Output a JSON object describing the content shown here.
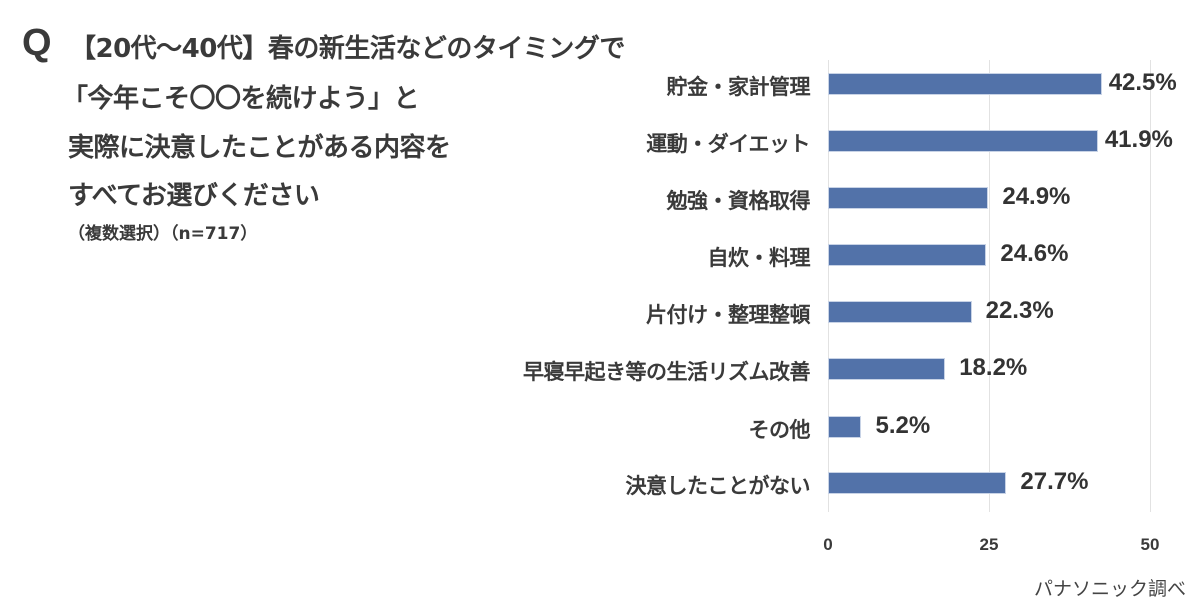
{
  "question": {
    "mark": "Q",
    "lines": [
      "【20代～40代】春の新生活などのタイミングで",
      "「今年こそ〇〇を続けよう」と",
      "実際に決意したことがある内容を",
      "すべてお選びください"
    ],
    "note": "（複数選択）（n=717）"
  },
  "source": "パナソニック調べ",
  "colors": {
    "bar": "#5272a9",
    "grid": "#e2e2e2",
    "text": "#333333"
  },
  "chart_data": {
    "type": "bar",
    "orientation": "horizontal",
    "title": "【20代～40代】春の新生活などのタイミングで「今年こそ〇〇を続けよう」と実際に決意したことがある内容をすべてお選びください（複数選択）（n=717）",
    "categories": [
      "貯金・家計管理",
      "運動・ダイエット",
      "勉強・資格取得",
      "自炊・料理",
      "片付け・整理整頓",
      "早寝早起き等の生活リズム改善",
      "その他",
      "決意したことがない"
    ],
    "values": [
      42.5,
      41.9,
      24.9,
      24.6,
      22.3,
      18.2,
      5.2,
      27.7
    ],
    "value_labels": [
      "42.5%",
      "41.9%",
      "24.9%",
      "24.6%",
      "22.3%",
      "18.2%",
      "5.2%",
      "27.7%"
    ],
    "xlabel": "",
    "ylabel": "",
    "xlim": [
      0,
      50
    ],
    "xticks": [
      "0",
      "25",
      "50"
    ],
    "grid": true,
    "legend": "none",
    "unit": "%"
  }
}
